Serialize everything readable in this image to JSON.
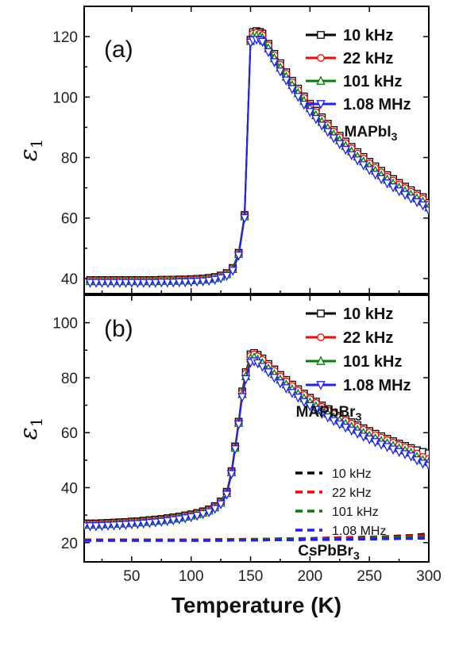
{
  "chart_data": [
    {
      "type": "line",
      "panel_label": "(a)",
      "ylabel": "ε",
      "ylabel_sub": "1",
      "xlim": [
        10,
        300
      ],
      "ylim": [
        35,
        130
      ],
      "yticks": [
        40,
        60,
        80,
        100,
        120
      ],
      "material": "MAPbI",
      "material_sub": "3",
      "x": [
        15,
        20,
        25,
        30,
        35,
        40,
        45,
        50,
        55,
        60,
        65,
        70,
        75,
        80,
        85,
        90,
        95,
        100,
        105,
        110,
        115,
        120,
        125,
        130,
        135,
        140,
        145,
        150,
        152,
        155,
        158,
        160,
        165,
        170,
        175,
        180,
        185,
        190,
        195,
        200,
        205,
        210,
        215,
        220,
        225,
        230,
        235,
        240,
        245,
        250,
        255,
        260,
        265,
        270,
        275,
        280,
        285,
        290,
        295,
        300
      ],
      "series": [
        {
          "name": "10 kHz",
          "color": "#000000",
          "marker": "square",
          "line_style": "solid",
          "values": [
            39.5,
            39.5,
            39.5,
            39.5,
            39.5,
            39.5,
            39.5,
            39.5,
            39.5,
            39.5,
            39.5,
            39.5,
            39.6,
            39.6,
            39.6,
            39.7,
            39.7,
            39.8,
            39.9,
            40.0,
            40.2,
            40.5,
            41.0,
            41.8,
            43.5,
            48.5,
            61,
            119,
            121.5,
            121.8,
            121.5,
            121,
            117.6,
            114.3,
            111.2,
            108.2,
            105.4,
            102.8,
            100.2,
            97.8,
            95.5,
            93.3,
            91.2,
            89.1,
            87.2,
            85.3,
            83.5,
            81.8,
            80.2,
            78.6,
            77.1,
            75.6,
            74.2,
            72.9,
            71.6,
            70.4,
            69.2,
            68.0,
            66.9,
            65.0
          ]
        },
        {
          "name": "22 kHz",
          "color": "#ff0000",
          "marker": "circle",
          "line_style": "solid",
          "values": [
            39.4,
            39.4,
            39.4,
            39.4,
            39.4,
            39.4,
            39.4,
            39.4,
            39.4,
            39.4,
            39.4,
            39.4,
            39.5,
            39.5,
            39.5,
            39.6,
            39.6,
            39.7,
            39.8,
            39.9,
            40.1,
            40.4,
            40.9,
            41.7,
            43.4,
            48.4,
            60.8,
            118.8,
            121,
            121.3,
            121,
            120.5,
            117.1,
            113.8,
            110.7,
            107.7,
            104.9,
            102.3,
            99.7,
            97.3,
            95.0,
            92.8,
            90.7,
            88.6,
            86.7,
            84.8,
            83.0,
            81.3,
            79.7,
            78.1,
            76.6,
            75.1,
            73.7,
            72.4,
            71.1,
            69.9,
            68.7,
            67.5,
            66.4,
            64.5
          ]
        },
        {
          "name": "101 kHz",
          "color": "#008000",
          "marker": "triangle-up",
          "line_style": "solid",
          "values": [
            39.1,
            39.1,
            39.1,
            39.1,
            39.1,
            39.1,
            39.1,
            39.1,
            39.1,
            39.1,
            39.1,
            39.1,
            39.2,
            39.2,
            39.2,
            39.3,
            39.3,
            39.4,
            39.5,
            39.6,
            39.8,
            40.1,
            40.6,
            41.4,
            43.1,
            48.1,
            60.5,
            118.5,
            120,
            120.3,
            120,
            119.5,
            116.1,
            112.8,
            109.7,
            106.7,
            103.9,
            101.3,
            98.7,
            96.3,
            94.0,
            91.8,
            89.7,
            87.6,
            85.7,
            83.8,
            82.0,
            80.3,
            78.7,
            77.1,
            75.6,
            74.1,
            72.7,
            71.4,
            70.1,
            68.9,
            67.7,
            66.5,
            65.4,
            63.5
          ]
        },
        {
          "name": "1.08 MHz",
          "color": "#1f1fff",
          "marker": "triangle-down",
          "line_style": "solid",
          "values": [
            38.6,
            38.6,
            38.6,
            38.6,
            38.6,
            38.6,
            38.6,
            38.6,
            38.6,
            38.6,
            38.6,
            38.6,
            38.7,
            38.7,
            38.7,
            38.8,
            38.8,
            38.9,
            39.0,
            39.1,
            39.3,
            39.6,
            40.1,
            40.9,
            42.6,
            47.6,
            60,
            118,
            118.8,
            119,
            118.8,
            118.3,
            114.9,
            111.6,
            108.5,
            105.5,
            102.7,
            100.1,
            97.5,
            95.1,
            92.8,
            90.6,
            88.5,
            86.4,
            84.5,
            82.6,
            80.8,
            79.1,
            77.5,
            75.9,
            74.4,
            72.9,
            71.5,
            70.2,
            68.9,
            67.7,
            66.5,
            65.3,
            64.2,
            62.5
          ]
        }
      ]
    },
    {
      "type": "line",
      "panel_label": "(b)",
      "ylabel": "ε",
      "ylabel_sub": "1",
      "xlabel": "Temperature (K)",
      "xlim": [
        10,
        300
      ],
      "ylim": [
        13,
        110
      ],
      "xticks": [
        50,
        100,
        150,
        200,
        250,
        300
      ],
      "yticks": [
        20,
        40,
        60,
        80,
        100
      ],
      "material": "MAPbBr",
      "material_sub": "3",
      "material2": "CsPbBr",
      "material2_sub": "3",
      "x": [
        10,
        15,
        20,
        25,
        30,
        35,
        40,
        45,
        50,
        55,
        60,
        65,
        70,
        75,
        80,
        85,
        90,
        95,
        100,
        105,
        110,
        115,
        120,
        125,
        130,
        134,
        137,
        140,
        143,
        146,
        150,
        153,
        156,
        160,
        165,
        170,
        175,
        180,
        185,
        190,
        195,
        200,
        205,
        210,
        215,
        220,
        225,
        230,
        235,
        240,
        245,
        250,
        255,
        260,
        265,
        270,
        275,
        280,
        285,
        290,
        295,
        300
      ],
      "series": [
        {
          "name": "10 kHz",
          "color": "#000000",
          "marker": "square",
          "line_style": "solid",
          "values": [
            27.0,
            27.0,
            27.0,
            27.1,
            27.2,
            27.3,
            27.4,
            27.5,
            27.7,
            27.8,
            28.0,
            28.2,
            28.4,
            28.6,
            28.9,
            29.2,
            29.5,
            29.9,
            30.3,
            30.8,
            31.4,
            32.1,
            33.3,
            35.0,
            38.5,
            46,
            55,
            64,
            75,
            82,
            88.5,
            89,
            88.3,
            87,
            85,
            83,
            81,
            79.2,
            77.5,
            75.8,
            74.2,
            72.7,
            71.3,
            69.9,
            68.6,
            67.3,
            66.1,
            64.9,
            63.8,
            62.7,
            61.6,
            60.6,
            59.6,
            58.7,
            57.8,
            56.9,
            56.0,
            55.2,
            54.4,
            53.6,
            53.0,
            52.5
          ]
        },
        {
          "name": "22 kHz",
          "color": "#ff0000",
          "marker": "circle",
          "line_style": "solid",
          "values": [
            26.8,
            26.8,
            26.8,
            26.9,
            27.0,
            27.1,
            27.2,
            27.3,
            27.5,
            27.6,
            27.8,
            28.0,
            28.2,
            28.4,
            28.7,
            29.0,
            29.3,
            29.7,
            30.1,
            30.6,
            31.2,
            31.9,
            33.1,
            34.8,
            38.3,
            45.8,
            54.8,
            63.8,
            74.6,
            81.5,
            88,
            88.5,
            87.8,
            86.5,
            84.5,
            82.5,
            80.5,
            78.7,
            77.0,
            75.3,
            73.7,
            72.2,
            70.8,
            69.4,
            68.1,
            66.8,
            65.6,
            64.4,
            63.3,
            62.2,
            61.1,
            60.1,
            59.1,
            58.2,
            57.3,
            56.4,
            55.5,
            54.7,
            53.9,
            52.4,
            51.2,
            50.5
          ]
        },
        {
          "name": "101 kHz",
          "color": "#008000",
          "marker": "triangle-up",
          "line_style": "solid",
          "values": [
            26.5,
            26.5,
            26.5,
            26.6,
            26.7,
            26.8,
            26.9,
            27.0,
            27.2,
            27.3,
            27.5,
            27.7,
            27.9,
            28.1,
            28.4,
            28.7,
            29.0,
            29.4,
            29.8,
            30.3,
            30.9,
            31.6,
            32.8,
            34.5,
            38.0,
            45.5,
            54.5,
            63.5,
            74.0,
            80.5,
            87,
            87.3,
            86.6,
            85.3,
            83.3,
            81.3,
            79.3,
            77.5,
            75.8,
            74.1,
            72.5,
            71.0,
            69.6,
            68.2,
            66.9,
            65.6,
            64.4,
            63.2,
            62.1,
            61.0,
            59.9,
            58.9,
            57.9,
            57.0,
            56.1,
            55.2,
            54.3,
            53.5,
            52.7,
            51.2,
            50.0,
            49.3
          ]
        },
        {
          "name": "1.08 MHz",
          "color": "#1f1fff",
          "marker": "triangle-down",
          "line_style": "solid",
          "values": [
            26.0,
            26.0,
            26.0,
            26.1,
            26.2,
            26.3,
            26.4,
            26.5,
            26.7,
            26.8,
            27.0,
            27.2,
            27.4,
            27.6,
            27.9,
            28.2,
            28.5,
            28.9,
            29.3,
            29.8,
            30.4,
            31.1,
            32.3,
            34.0,
            37.5,
            45,
            54,
            63,
            73,
            79.5,
            85.5,
            86,
            85.3,
            84,
            82,
            80,
            78,
            76.2,
            74.5,
            72.8,
            71.2,
            69.7,
            68.3,
            66.9,
            65.6,
            64.3,
            63.1,
            61.9,
            60.8,
            59.7,
            58.6,
            57.6,
            56.6,
            55.7,
            54.8,
            53.9,
            53.0,
            52.2,
            51.4,
            50.0,
            48.8,
            48.0
          ]
        },
        {
          "name": "10 kHz",
          "color": "#000000",
          "line_style": "dashed",
          "values": [
            21.0,
            21.0,
            21.0,
            21.0,
            21.0,
            21.0,
            21.0,
            21.0,
            21.0,
            21.0,
            21.0,
            21.0,
            21.0,
            21.0,
            21.0,
            21.0,
            21.0,
            21.0,
            21.0,
            21.0,
            21.0,
            21.0,
            21.1,
            21.1,
            21.1,
            21.1,
            21.1,
            21.1,
            21.2,
            21.2,
            21.2,
            21.2,
            21.2,
            21.3,
            21.3,
            21.3,
            21.4,
            21.4,
            21.4,
            21.5,
            21.5,
            21.5,
            21.6,
            21.6,
            21.7,
            21.7,
            21.8,
            21.8,
            21.9,
            21.9,
            22.0,
            22.0,
            22.1,
            22.1,
            22.2,
            22.3,
            22.4,
            22.5,
            22.6,
            22.8,
            23.0,
            23.2
          ]
        },
        {
          "name": "22 kHz",
          "color": "#ff0000",
          "line_style": "dashed",
          "values": [
            21.0,
            21.0,
            21.0,
            21.0,
            21.0,
            21.0,
            21.0,
            21.0,
            21.0,
            21.0,
            21.0,
            21.0,
            21.0,
            21.0,
            21.0,
            21.0,
            21.0,
            21.0,
            21.0,
            21.0,
            21.0,
            21.0,
            21.0,
            21.0,
            21.1,
            21.1,
            21.1,
            21.1,
            21.1,
            21.1,
            21.2,
            21.2,
            21.2,
            21.2,
            21.3,
            21.3,
            21.3,
            21.4,
            21.4,
            21.4,
            21.5,
            21.5,
            21.5,
            21.6,
            21.6,
            21.7,
            21.7,
            21.7,
            21.8,
            21.8,
            21.9,
            21.9,
            22.0,
            22.0,
            22.1,
            22.1,
            22.2,
            22.3,
            22.4,
            22.5,
            22.6,
            22.7
          ]
        },
        {
          "name": "101 kHz",
          "color": "#008000",
          "line_style": "dashed",
          "values": [
            20.9,
            20.9,
            20.9,
            20.9,
            20.9,
            20.9,
            20.9,
            20.9,
            20.9,
            20.9,
            20.9,
            20.9,
            20.9,
            20.9,
            20.9,
            20.9,
            20.9,
            20.9,
            20.9,
            20.9,
            20.9,
            20.9,
            20.9,
            20.9,
            21.0,
            21.0,
            21.0,
            21.0,
            21.0,
            21.0,
            21.0,
            21.0,
            21.1,
            21.1,
            21.1,
            21.1,
            21.2,
            21.2,
            21.2,
            21.2,
            21.3,
            21.3,
            21.3,
            21.4,
            21.4,
            21.4,
            21.5,
            21.5,
            21.5,
            21.6,
            21.6,
            21.6,
            21.7,
            21.7,
            21.7,
            21.8,
            21.8,
            21.9,
            21.9,
            22.0,
            22.0,
            22.1
          ]
        },
        {
          "name": "1.08 MHz",
          "color": "#1f1fff",
          "line_style": "dashed",
          "values": [
            20.8,
            20.8,
            20.8,
            20.8,
            20.8,
            20.8,
            20.8,
            20.8,
            20.8,
            20.8,
            20.8,
            20.8,
            20.8,
            20.8,
            20.8,
            20.8,
            20.8,
            20.8,
            20.8,
            20.8,
            20.8,
            20.8,
            20.8,
            20.8,
            20.8,
            20.9,
            20.9,
            20.9,
            20.9,
            20.9,
            20.9,
            20.9,
            20.9,
            20.9,
            21.0,
            21.0,
            21.0,
            21.0,
            21.0,
            21.0,
            21.1,
            21.1,
            21.1,
            21.1,
            21.1,
            21.2,
            21.2,
            21.2,
            21.2,
            21.3,
            21.3,
            21.3,
            21.3,
            21.4,
            21.4,
            21.4,
            21.5,
            21.5,
            21.5,
            21.6,
            21.6,
            21.7
          ]
        }
      ]
    }
  ]
}
